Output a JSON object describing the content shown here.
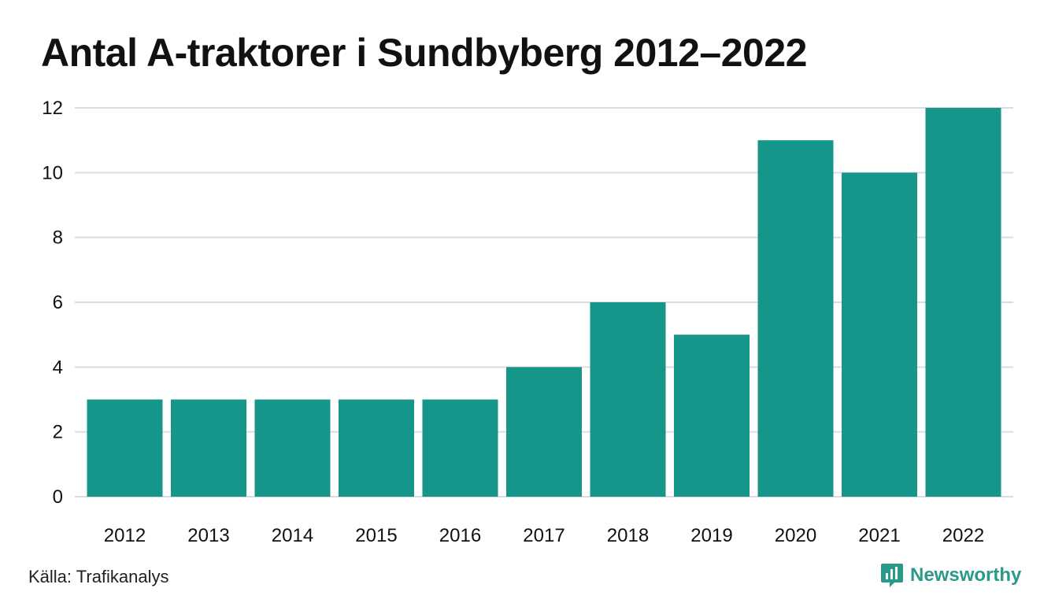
{
  "title": "Antal A-traktorer i Sundbyberg 2012–2022",
  "source": "Källa: Trafikanalys",
  "brand": {
    "name": "Newsworthy",
    "icon": "newsworthy-logo-icon"
  },
  "colors": {
    "bar": "#16968a",
    "grid": "#dcdce0",
    "brand": "#2a9a88"
  },
  "chart_data": {
    "type": "bar",
    "title": "Antal A-traktorer i Sundbyberg 2012–2022",
    "categories": [
      "2012",
      "2013",
      "2014",
      "2015",
      "2016",
      "2017",
      "2018",
      "2019",
      "2020",
      "2021",
      "2022"
    ],
    "values": [
      3,
      3,
      3,
      3,
      3,
      4,
      6,
      5,
      11,
      10,
      12
    ],
    "xlabel": "",
    "ylabel": "",
    "ylim": [
      0,
      12
    ],
    "yticks": [
      0,
      2,
      4,
      6,
      8,
      10,
      12
    ],
    "grid": true,
    "legend": "none"
  }
}
